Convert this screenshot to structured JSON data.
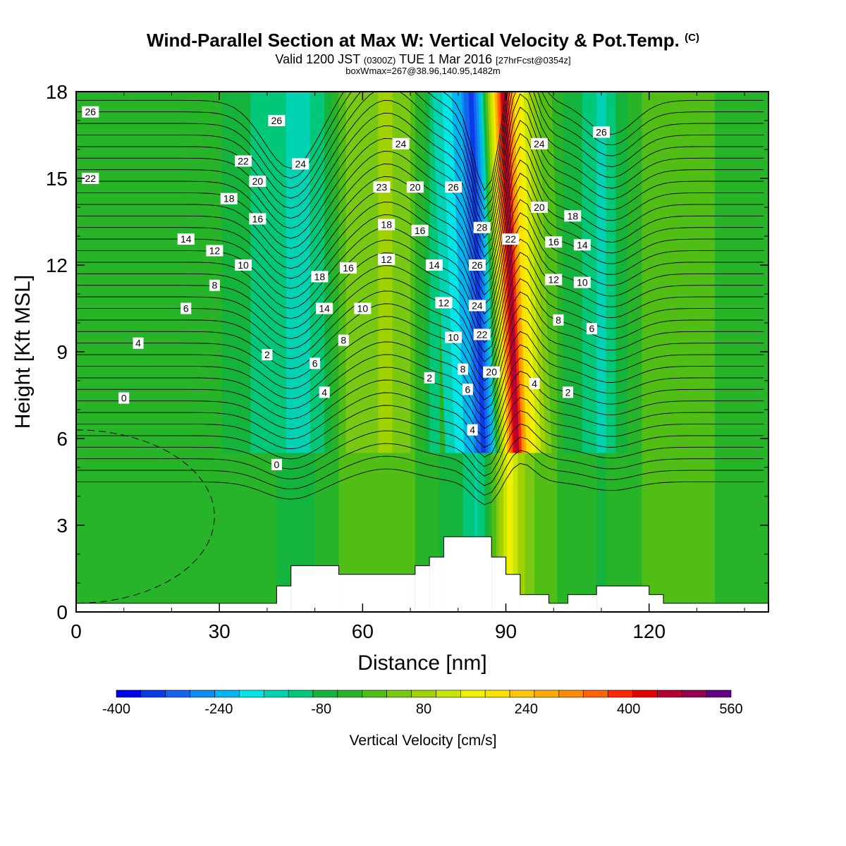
{
  "header": {
    "title": "Wind-Parallel Section at Max W: Vertical Velocity & Pot.Temp.",
    "title_mark": "(C)",
    "valid_prefix": "Valid 1200 JST",
    "valid_utc": "(0300Z)",
    "valid_date": "TUE 1 Mar 2016",
    "forecast": "[27hrFcst@0354z]",
    "box_info": "boxWmax=267@38.96,140.95,1482m"
  },
  "chart_data": {
    "type": "heatmap",
    "xlabel": "Distance [nm]",
    "ylabel": "Height [Kft MSL]",
    "xlim": [
      0,
      145
    ],
    "ylim": [
      0,
      18
    ],
    "x_ticks": [
      0,
      30,
      60,
      90,
      120
    ],
    "y_ticks": [
      0,
      3,
      6,
      9,
      12,
      15,
      18
    ],
    "grid": false,
    "colorbar": {
      "label": "Vertical Velocity [cm/s]",
      "tick_labels": [
        "-400",
        "-240",
        "-80",
        "80",
        "240",
        "400",
        "560"
      ],
      "tick_values": [
        -400,
        -240,
        -80,
        80,
        240,
        400,
        560
      ],
      "range": [
        -400,
        560
      ],
      "step": 40,
      "colors": [
        "#0000f0",
        "#0a3ce6",
        "#1464f0",
        "#0a8cf0",
        "#00b4f0",
        "#00e6e6",
        "#00d2b4",
        "#00c878",
        "#14b43c",
        "#28b428",
        "#50be14",
        "#78c814",
        "#a0d200",
        "#c8e600",
        "#f0f000",
        "#ffe100",
        "#ffc800",
        "#ffaa00",
        "#ff8c00",
        "#ff6400",
        "#ff2800",
        "#e60000",
        "#b40032",
        "#960050",
        "#640082"
      ]
    },
    "velocity_bands_vs_distance": [
      {
        "x": 0,
        "w": -20
      },
      {
        "x": 28,
        "w": -20
      },
      {
        "x": 33,
        "w": -60
      },
      {
        "x": 40,
        "w": -100
      },
      {
        "x": 48,
        "w": -140
      },
      {
        "x": 52,
        "w": -80
      },
      {
        "x": 58,
        "w": 60
      },
      {
        "x": 65,
        "w": 90
      },
      {
        "x": 70,
        "w": 40
      },
      {
        "x": 74,
        "w": -80
      },
      {
        "x": 78,
        "w": -160
      },
      {
        "x": 82,
        "w": -250
      },
      {
        "x": 84,
        "w": -360
      },
      {
        "x": 86,
        "w": -200
      },
      {
        "x": 88,
        "w": 120
      },
      {
        "x": 90,
        "w": 420
      },
      {
        "x": 91,
        "w": 520
      },
      {
        "x": 93,
        "w": 260
      },
      {
        "x": 97,
        "w": 80
      },
      {
        "x": 102,
        "w": -40
      },
      {
        "x": 106,
        "w": -80
      },
      {
        "x": 110,
        "w": -130
      },
      {
        "x": 114,
        "w": -60
      },
      {
        "x": 120,
        "w": 20
      },
      {
        "x": 130,
        "w": 10
      },
      {
        "x": 145,
        "w": -40
      }
    ],
    "terrain_heights": [
      {
        "x0": 0,
        "x1": 42,
        "h": 0.3
      },
      {
        "x0": 42,
        "x1": 45,
        "h": 0.9
      },
      {
        "x0": 45,
        "x1": 55,
        "h": 1.6
      },
      {
        "x0": 55,
        "x1": 71,
        "h": 1.3
      },
      {
        "x0": 71,
        "x1": 74,
        "h": 1.6
      },
      {
        "x0": 74,
        "x1": 77,
        "h": 1.9
      },
      {
        "x0": 77,
        "x1": 87,
        "h": 2.6
      },
      {
        "x0": 87,
        "x1": 90,
        "h": 1.9
      },
      {
        "x0": 90,
        "x1": 93,
        "h": 1.3
      },
      {
        "x0": 93,
        "x1": 99,
        "h": 0.6
      },
      {
        "x0": 99,
        "x1": 103,
        "h": 0.3
      },
      {
        "x0": 103,
        "x1": 109,
        "h": 0.6
      },
      {
        "x0": 109,
        "x1": 120,
        "h": 0.9
      },
      {
        "x0": 120,
        "x1": 123,
        "h": 0.6
      },
      {
        "x0": 123,
        "x1": 145,
        "h": 0.3
      }
    ],
    "theta_contour_labels": [
      {
        "x": 3,
        "y": 17.3,
        "text": "26"
      },
      {
        "x": 3,
        "y": 15.0,
        "text": "22"
      },
      {
        "x": 35,
        "y": 15.6,
        "text": "22"
      },
      {
        "x": 38,
        "y": 14.9,
        "text": "20"
      },
      {
        "x": 32,
        "y": 14.3,
        "text": "18"
      },
      {
        "x": 38,
        "y": 13.6,
        "text": "16"
      },
      {
        "x": 23,
        "y": 12.9,
        "text": "14"
      },
      {
        "x": 29,
        "y": 12.5,
        "text": "12"
      },
      {
        "x": 35,
        "y": 12.0,
        "text": "10"
      },
      {
        "x": 29,
        "y": 11.3,
        "text": "8"
      },
      {
        "x": 23,
        "y": 10.5,
        "text": "6"
      },
      {
        "x": 13,
        "y": 9.3,
        "text": "4"
      },
      {
        "x": 40,
        "y": 8.9,
        "text": "2"
      },
      {
        "x": 10,
        "y": 7.4,
        "text": "0"
      },
      {
        "x": 42,
        "y": 5.1,
        "text": "0"
      },
      {
        "x": 42,
        "y": 17.0,
        "text": "26"
      },
      {
        "x": 47,
        "y": 15.5,
        "text": "24"
      },
      {
        "x": 51,
        "y": 11.6,
        "text": "18"
      },
      {
        "x": 52,
        "y": 10.5,
        "text": "14"
      },
      {
        "x": 50,
        "y": 8.6,
        "text": "6"
      },
      {
        "x": 52,
        "y": 7.6,
        "text": "4"
      },
      {
        "x": 57,
        "y": 11.9,
        "text": "16"
      },
      {
        "x": 56,
        "y": 9.4,
        "text": "8"
      },
      {
        "x": 60,
        "y": 10.5,
        "text": "10"
      },
      {
        "x": 65,
        "y": 12.2,
        "text": "12"
      },
      {
        "x": 65,
        "y": 13.4,
        "text": "18"
      },
      {
        "x": 64,
        "y": 14.7,
        "text": "23"
      },
      {
        "x": 68,
        "y": 16.2,
        "text": "24"
      },
      {
        "x": 71,
        "y": 14.7,
        "text": "20"
      },
      {
        "x": 72,
        "y": 13.2,
        "text": "16"
      },
      {
        "x": 75,
        "y": 12.0,
        "text": "14"
      },
      {
        "x": 77,
        "y": 10.7,
        "text": "12"
      },
      {
        "x": 79,
        "y": 9.5,
        "text": "10"
      },
      {
        "x": 81,
        "y": 8.4,
        "text": "8"
      },
      {
        "x": 74,
        "y": 8.1,
        "text": "2"
      },
      {
        "x": 82,
        "y": 7.7,
        "text": "6"
      },
      {
        "x": 83,
        "y": 6.3,
        "text": "4"
      },
      {
        "x": 79,
        "y": 14.7,
        "text": "26"
      },
      {
        "x": 85,
        "y": 13.3,
        "text": "28"
      },
      {
        "x": 84,
        "y": 12.0,
        "text": "26"
      },
      {
        "x": 84,
        "y": 10.6,
        "text": "24"
      },
      {
        "x": 85,
        "y": 9.6,
        "text": "22"
      },
      {
        "x": 87,
        "y": 8.3,
        "text": "20"
      },
      {
        "x": 91,
        "y": 12.9,
        "text": "22"
      },
      {
        "x": 97,
        "y": 16.2,
        "text": "24"
      },
      {
        "x": 97,
        "y": 14.0,
        "text": "20"
      },
      {
        "x": 104,
        "y": 13.7,
        "text": "18"
      },
      {
        "x": 100,
        "y": 12.8,
        "text": "16"
      },
      {
        "x": 106,
        "y": 12.7,
        "text": "14"
      },
      {
        "x": 100,
        "y": 11.5,
        "text": "12"
      },
      {
        "x": 106,
        "y": 11.4,
        "text": "10"
      },
      {
        "x": 101,
        "y": 10.1,
        "text": "8"
      },
      {
        "x": 108,
        "y": 9.8,
        "text": "6"
      },
      {
        "x": 96,
        "y": 7.9,
        "text": "4"
      },
      {
        "x": 103,
        "y": 7.6,
        "text": "2"
      },
      {
        "x": 110,
        "y": 16.6,
        "text": "26"
      }
    ]
  }
}
